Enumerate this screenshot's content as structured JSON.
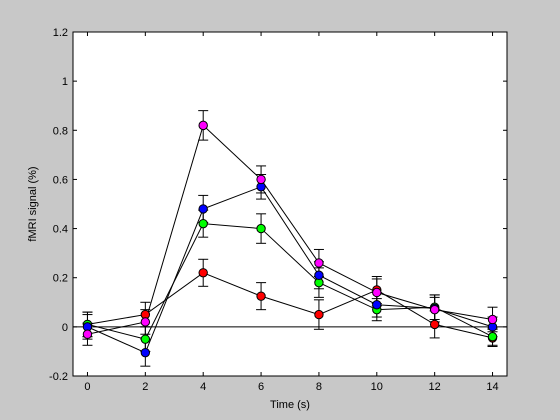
{
  "chart_data": {
    "type": "line",
    "title": "",
    "xlabel": "Time (s)",
    "ylabel": "fMRI signal (%)",
    "xlim": [
      -0.5,
      14.5
    ],
    "ylim": [
      -0.2,
      1.2
    ],
    "x_ticks": [
      "0",
      "2",
      "4",
      "6",
      "8",
      "10",
      "12",
      "14"
    ],
    "y_ticks": [
      "-0.2",
      "0",
      "0.2",
      "0.4",
      "0.6",
      "0.8",
      "1",
      "1.2"
    ],
    "grid": false,
    "legend": "none",
    "zero_line": true,
    "x": [
      0,
      2,
      4,
      6,
      8,
      10,
      12,
      14
    ],
    "series": [
      {
        "color": "#ff0000",
        "values": [
          0.01,
          0.05,
          0.22,
          0.125,
          0.05,
          0.15,
          0.01,
          -0.045
        ],
        "errors": [
          0.05,
          0.05,
          0.055,
          0.055,
          0.06,
          0.055,
          0.055,
          0.035
        ]
      },
      {
        "color": "#00ff00",
        "values": [
          0.01,
          -0.05,
          0.42,
          0.4,
          0.18,
          0.07,
          0.08,
          -0.04
        ],
        "errors": [
          0.05,
          0.05,
          0.055,
          0.06,
          0.06,
          0.045,
          0.05,
          0.035
        ]
      },
      {
        "color": "#0000ff",
        "values": [
          0.0,
          -0.105,
          0.48,
          0.57,
          0.21,
          0.09,
          0.075,
          0.0
        ],
        "errors": [
          0.05,
          0.055,
          0.055,
          0.05,
          0.055,
          0.05,
          0.055,
          0.04
        ]
      },
      {
        "color": "#ff00ff",
        "values": [
          -0.03,
          0.02,
          0.82,
          0.6,
          0.26,
          0.14,
          0.07,
          0.03
        ],
        "errors": [
          0.045,
          0.05,
          0.06,
          0.055,
          0.055,
          0.055,
          0.05,
          0.05
        ]
      }
    ]
  }
}
